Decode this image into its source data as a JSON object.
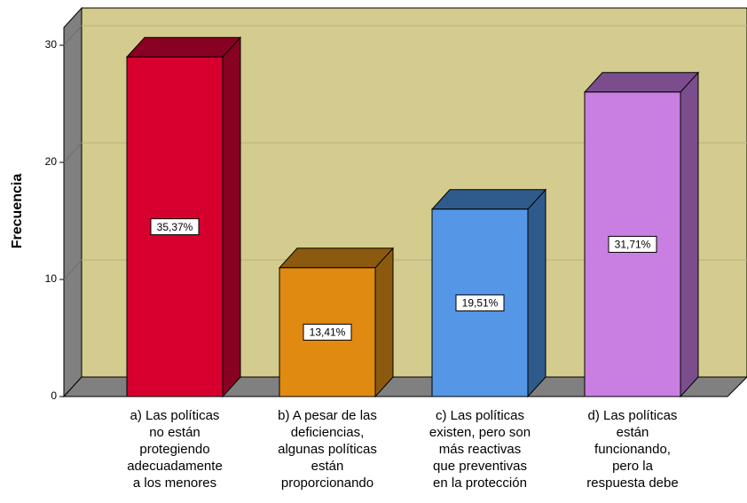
{
  "chart_data": {
    "type": "bar3d",
    "y_label": "Frecuencia",
    "categories": [
      [
        "a) Las políticas",
        "no están",
        "protegiendo",
        "adecuadamente",
        "a los menores"
      ],
      [
        "b) A pesar de las",
        "deficiencias,",
        "algunas políticas",
        "están",
        "proporcionando"
      ],
      [
        "c) Las políticas",
        "existen, pero son",
        "más reactivas",
        "que preventivas",
        "en la protección"
      ],
      [
        "d) Las políticas",
        "están",
        "funcionando,",
        "pero la",
        "respuesta debe"
      ]
    ],
    "values": [
      29,
      11,
      16,
      26
    ],
    "percentages": [
      35.37,
      13.41,
      19.51,
      31.71
    ],
    "percentage_labels": [
      "35,37%",
      "13,41%",
      "19,51%",
      "31,71%"
    ],
    "colors": [
      "#d6002f",
      "#e08a12",
      "#5597e6",
      "#c97fe2"
    ],
    "side_colors": [
      "#880022",
      "#8c5a0e",
      "#2f5a8c",
      "#7b4d8d"
    ],
    "wall_color": "#d4cc8e",
    "ylim": [
      0,
      30
    ],
    "yticks": [
      0,
      10,
      20,
      30
    ],
    "grid": true
  }
}
